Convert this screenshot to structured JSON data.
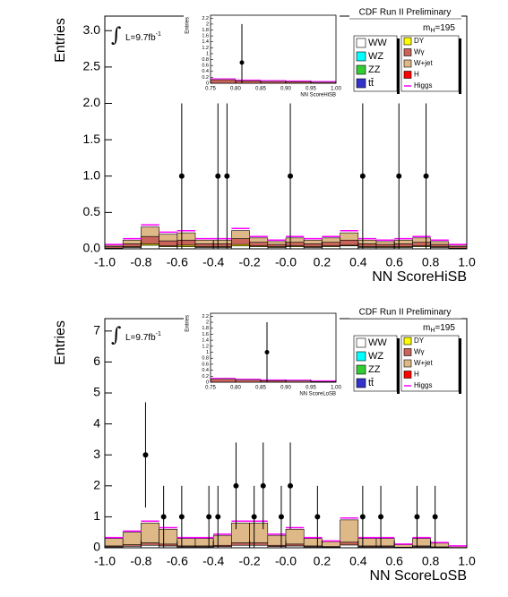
{
  "chart_data": [
    {
      "type": "histogram",
      "title": "CDF Run II Preliminary",
      "mass": {
        "m": "m",
        "sub": "H",
        "value": "=195"
      },
      "integral": "∫",
      "lumi": {
        "text": "L=9.7fb",
        "sup": "-1"
      },
      "x_label": "NN ScoreHiSB",
      "y_label": "Entries",
      "xlim": [
        -1,
        1
      ],
      "ylim": [
        0,
        3.2
      ],
      "xticks": [
        {
          "value": -1,
          "label": "-1.0"
        },
        -0.8,
        -0.6,
        -0.4,
        -0.2,
        {
          "value": 0,
          "label": "-0.0"
        },
        0.2,
        0.4,
        0.6,
        0.8,
        {
          "value": 1,
          "label": "1.0"
        }
      ],
      "yticks": [
        {
          "value": 0,
          "label": "0.0"
        },
        0.5,
        {
          "value": 1,
          "label": "1.0"
        },
        1.5,
        {
          "value": 2,
          "label": "2.0"
        },
        2.5,
        {
          "value": 3,
          "label": "3.0"
        }
      ],
      "bins": [
        -1,
        -0.9,
        -0.8,
        -0.7,
        -0.6,
        -0.5,
        -0.4,
        -0.3,
        -0.2,
        -0.1,
        0,
        0.1,
        0.2,
        0.3,
        0.4,
        0.5,
        0.6,
        0.7,
        0.8,
        0.9,
        1
      ],
      "series": [
        {
          "name": "WW",
          "color": "#ffffff",
          "values": [
            0.01,
            0.02,
            0.05,
            0.03,
            0.03,
            0.02,
            0.02,
            0.04,
            0.03,
            0.02,
            0.03,
            0.02,
            0.03,
            0.04,
            0.02,
            0.02,
            0.02,
            0.03,
            0.02,
            0.01
          ]
        },
        {
          "name": "WZ",
          "color": "#00ffff",
          "values": [
            0,
            0,
            0,
            0,
            0,
            0,
            0,
            0,
            0,
            0,
            0,
            0,
            0,
            0,
            0,
            0,
            0,
            0,
            0,
            0
          ]
        },
        {
          "name": "ZZ",
          "color": "#33cc33",
          "values": [
            0,
            0,
            0,
            0,
            0,
            0,
            0,
            0,
            0,
            0,
            0,
            0,
            0,
            0,
            0,
            0,
            0,
            0,
            0,
            0
          ]
        },
        {
          "name": "tt̄",
          "color": "#3333cc",
          "values": [
            0,
            0,
            0,
            0,
            0,
            0,
            0,
            0,
            0,
            0,
            0,
            0,
            0,
            0,
            0,
            0,
            0,
            0,
            0,
            0
          ]
        },
        {
          "name": "DY",
          "color": "#ffff00",
          "values": [
            0,
            0.01,
            0.02,
            0.01,
            0.02,
            0.01,
            0.01,
            0.02,
            0.01,
            0.01,
            0.01,
            0.01,
            0.01,
            0.01,
            0.01,
            0.01,
            0.01,
            0.01,
            0.01,
            0
          ]
        },
        {
          "name": "Wγ",
          "color": "#c8645a",
          "values": [
            0.02,
            0.04,
            0.1,
            0.07,
            0.07,
            0.04,
            0.04,
            0.08,
            0.05,
            0.03,
            0.05,
            0.04,
            0.05,
            0.07,
            0.04,
            0.03,
            0.04,
            0.05,
            0.03,
            0.02
          ]
        },
        {
          "name": "W+jet",
          "color": "#deb887",
          "values": [
            0.02,
            0.05,
            0.13,
            0.09,
            0.1,
            0.05,
            0.05,
            0.11,
            0.06,
            0.04,
            0.06,
            0.05,
            0.06,
            0.1,
            0.05,
            0.04,
            0.05,
            0.06,
            0.04,
            0.02
          ]
        },
        {
          "name": "H",
          "color": "#ff0000",
          "values": [
            0,
            0,
            0,
            0,
            0,
            0,
            0,
            0,
            0,
            0,
            0,
            0,
            0,
            0,
            0,
            0,
            0,
            0,
            0,
            0
          ]
        },
        {
          "name": "Higgs",
          "color": "#ff00ff",
          "style": "line",
          "values": [
            0.01,
            0.02,
            0.03,
            0.03,
            0.03,
            0.02,
            0.02,
            0.03,
            0.02,
            0.02,
            0.02,
            0.02,
            0.02,
            0.03,
            0.02,
            0.02,
            0.02,
            0.02,
            0.02,
            0.01
          ]
        }
      ],
      "data": {
        "x": [
          -0.575,
          -0.375,
          -0.325,
          0.025,
          0.425,
          0.625,
          0.775
        ],
        "values": [
          1,
          1,
          1,
          1,
          1,
          1,
          1
        ],
        "errors": [
          1,
          1,
          1,
          1,
          1,
          1,
          1
        ]
      },
      "inset": {
        "x_label": "NN ScoreHiSB",
        "y_label": "Entries",
        "xlim": [
          0.75,
          1
        ],
        "ylim": [
          0,
          2.3
        ],
        "xticks": [
          0.75,
          {
            "value": 0.8,
            "label": "0.80"
          },
          0.85,
          {
            "value": 0.9,
            "label": "0.90"
          },
          0.95,
          {
            "value": 1,
            "label": "1.00"
          }
        ],
        "yticks": [
          0,
          0.2,
          0.4,
          0.6,
          0.8,
          1,
          1.2,
          1.4,
          1.6,
          1.8,
          2,
          2.2
        ],
        "bins": [
          0.75,
          0.8,
          0.85,
          0.9,
          0.95,
          1
        ],
        "values": [
          0.12,
          0.08,
          0.06,
          0.05,
          0.03
        ],
        "data": {
          "x": [
            0.8125
          ],
          "values": [
            0.7
          ],
          "errors": [
            1.3
          ]
        }
      }
    },
    {
      "type": "histogram",
      "title": "CDF Run II Preliminary",
      "mass": {
        "m": "m",
        "sub": "H",
        "value": "=195"
      },
      "integral": "∫",
      "lumi": {
        "text": "L=9.7fb",
        "sup": "-1"
      },
      "x_label": "NN ScoreLoSB",
      "y_label": "Entries",
      "xlim": [
        -1,
        1
      ],
      "ylim": [
        0,
        7.4
      ],
      "xticks": [
        {
          "value": -1,
          "label": "-1.0"
        },
        -0.8,
        -0.6,
        -0.4,
        -0.2,
        {
          "value": 0,
          "label": "-0.0"
        },
        0.2,
        0.4,
        0.6,
        0.8,
        {
          "value": 1,
          "label": "1.0"
        }
      ],
      "yticks": [
        0,
        1,
        2,
        3,
        4,
        5,
        6,
        7
      ],
      "bins": [
        -1,
        -0.9,
        -0.8,
        -0.7,
        -0.6,
        -0.5,
        -0.4,
        -0.3,
        -0.2,
        -0.1,
        0,
        0.1,
        0.2,
        0.3,
        0.4,
        0.5,
        0.6,
        0.7,
        0.8,
        0.9,
        1
      ],
      "series": [
        {
          "name": "WW",
          "color": "#ffffff",
          "values": [
            0.03,
            0.05,
            0.08,
            0.06,
            0.03,
            0.03,
            0.04,
            0.08,
            0.08,
            0.04,
            0.06,
            0.03,
            0.02,
            0.09,
            0.03,
            0.03,
            0.01,
            0.03,
            0.015,
            0.005
          ]
        },
        {
          "name": "WZ",
          "color": "#00ffff",
          "values": [
            0,
            0,
            0,
            0,
            0,
            0,
            0,
            0,
            0,
            0,
            0,
            0,
            0,
            0,
            0,
            0,
            0,
            0,
            0,
            0
          ]
        },
        {
          "name": "ZZ",
          "color": "#33cc33",
          "values": [
            0,
            0,
            0,
            0,
            0,
            0,
            0,
            0,
            0,
            0,
            0,
            0,
            0,
            0,
            0,
            0,
            0,
            0,
            0,
            0
          ]
        },
        {
          "name": "tt̄",
          "color": "#3333cc",
          "values": [
            0,
            0,
            0,
            0,
            0,
            0,
            0,
            0,
            0,
            0,
            0,
            0,
            0,
            0,
            0,
            0,
            0,
            0,
            0,
            0
          ]
        },
        {
          "name": "DY",
          "color": "#ffff00",
          "values": [
            0,
            0,
            0,
            0,
            0,
            0,
            0,
            0,
            0,
            0,
            0,
            0,
            0,
            0,
            0,
            0,
            0,
            0,
            0,
            0
          ]
        },
        {
          "name": "Wγ",
          "color": "#c8645a",
          "values": [
            0.03,
            0.05,
            0.08,
            0.06,
            0.03,
            0.03,
            0.04,
            0.08,
            0.08,
            0.04,
            0.06,
            0.03,
            0.02,
            0.09,
            0.03,
            0.03,
            0.01,
            0.03,
            0.015,
            0.005
          ]
        },
        {
          "name": "W+jet",
          "color": "#deb887",
          "values": [
            0.24,
            0.4,
            0.64,
            0.48,
            0.24,
            0.24,
            0.32,
            0.64,
            0.64,
            0.32,
            0.48,
            0.24,
            0.16,
            0.72,
            0.24,
            0.24,
            0.08,
            0.24,
            0.12,
            0.04
          ]
        },
        {
          "name": "H",
          "color": "#ff0000",
          "values": [
            0,
            0,
            0,
            0,
            0,
            0,
            0,
            0,
            0,
            0,
            0,
            0,
            0,
            0,
            0,
            0,
            0,
            0,
            0,
            0
          ]
        },
        {
          "name": "Higgs",
          "color": "#ff00ff",
          "style": "line",
          "values": [
            0.03,
            0.04,
            0.06,
            0.05,
            0.03,
            0.03,
            0.04,
            0.06,
            0.06,
            0.04,
            0.05,
            0.03,
            0.02,
            0.06,
            0.03,
            0.03,
            0.02,
            0.03,
            0.02,
            0.01
          ]
        }
      ],
      "data": {
        "x": [
          -0.775,
          -0.675,
          -0.575,
          -0.425,
          -0.375,
          -0.275,
          -0.175,
          -0.125,
          -0.025,
          0.025,
          0.175,
          0.425,
          0.525,
          0.725,
          0.825
        ],
        "values": [
          3,
          1,
          1,
          1,
          1,
          2,
          1,
          2,
          1,
          2,
          1,
          1,
          1,
          1,
          1
        ],
        "errors": [
          1.7,
          1,
          1,
          1,
          1,
          1.4,
          1,
          1.4,
          1,
          1.4,
          1,
          1,
          1,
          1,
          1
        ]
      },
      "inset": {
        "x_label": "NN ScoreLoSB",
        "y_label": "Entries",
        "xlim": [
          0.75,
          1
        ],
        "ylim": [
          0,
          2.3
        ],
        "xticks": [
          0.75,
          {
            "value": 0.8,
            "label": "0.80"
          },
          0.85,
          {
            "value": 0.9,
            "label": "0.90"
          },
          0.95,
          {
            "value": 1,
            "label": "1.00"
          }
        ],
        "yticks": [
          0,
          0.2,
          0.4,
          0.6,
          0.8,
          1,
          1.2,
          1.4,
          1.6,
          1.8,
          2,
          2.2
        ],
        "bins": [
          0.75,
          0.8,
          0.85,
          0.9,
          0.95,
          1
        ],
        "values": [
          0.1,
          0.07,
          0.05,
          0.04,
          0.02
        ],
        "data": {
          "x": [
            0.8625
          ],
          "values": [
            1
          ],
          "errors": [
            1
          ]
        }
      }
    }
  ]
}
